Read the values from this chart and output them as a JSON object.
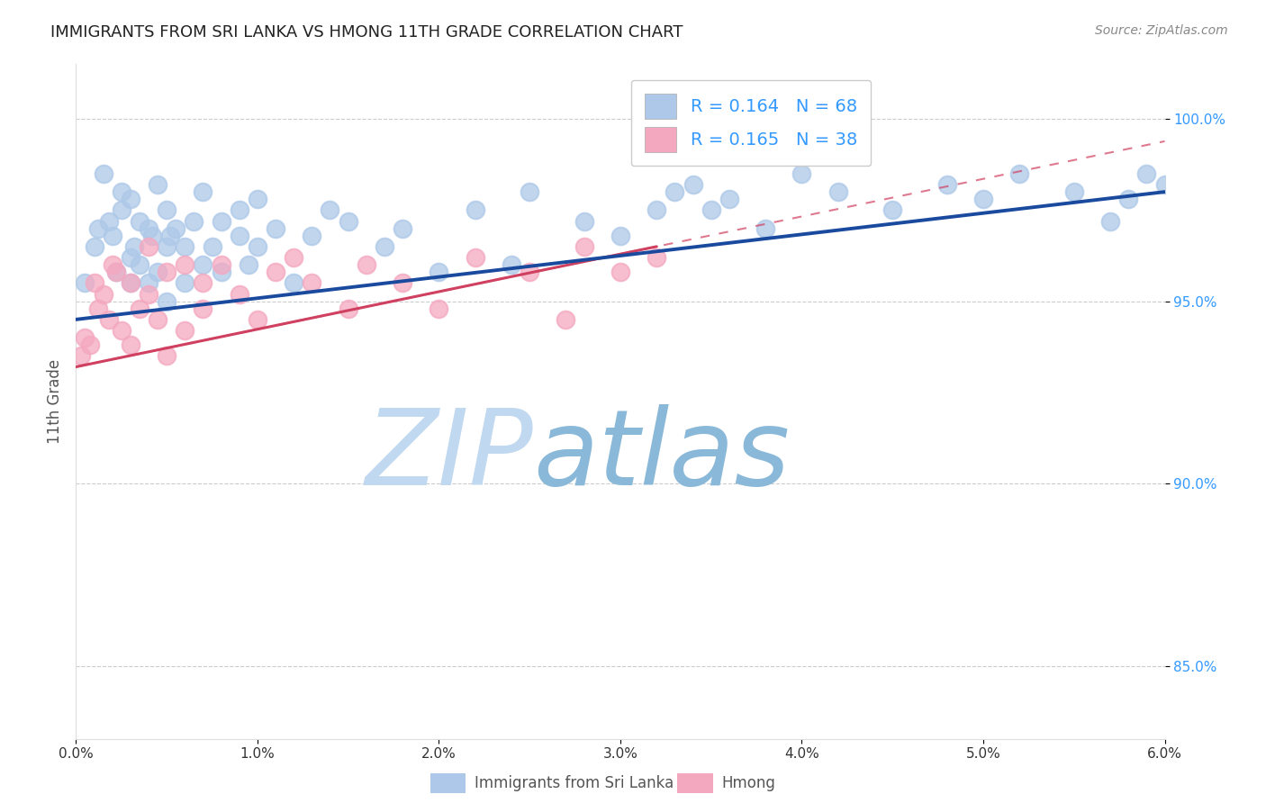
{
  "title": "IMMIGRANTS FROM SRI LANKA VS HMONG 11TH GRADE CORRELATION CHART",
  "source": "Source: ZipAtlas.com",
  "ylabel": "11th Grade",
  "xlim": [
    0.0,
    0.06
  ],
  "ylim": [
    83.0,
    101.5
  ],
  "yticks": [
    85.0,
    90.0,
    95.0,
    100.0
  ],
  "ytick_labels": [
    "85.0%",
    "90.0%",
    "95.0%",
    "100.0%"
  ],
  "xticks": [
    0.0,
    0.01,
    0.02,
    0.03,
    0.04,
    0.05,
    0.06
  ],
  "xtick_labels": [
    "0.0%",
    "1.0%",
    "2.0%",
    "3.0%",
    "4.0%",
    "5.0%",
    "6.0%"
  ],
  "legend_sri_lanka": "R = 0.164   N = 68",
  "legend_hmong": "R = 0.165   N = 38",
  "sri_lanka_color": "#adc8e8",
  "hmong_color": "#f4a8c0",
  "sri_lanka_line_color": "#1a4a9e",
  "hmong_line_color": "#d04060",
  "watermark_zip": "ZIP",
  "watermark_atlas": "atlas",
  "watermark_color_zip": "#c0d8f0",
  "watermark_color_atlas": "#8ab8d8",
  "legend_text_color": "#3399ff",
  "ytick_color": "#3399ff",
  "bottom_legend_sri_lanka": "Immigrants from Sri Lanka",
  "bottom_legend_hmong": "Hmong",
  "sri_lanka_x": [
    0.0005,
    0.001,
    0.0012,
    0.0015,
    0.0018,
    0.002,
    0.0022,
    0.0025,
    0.0025,
    0.003,
    0.003,
    0.003,
    0.0032,
    0.0035,
    0.0035,
    0.004,
    0.004,
    0.0042,
    0.0045,
    0.0045,
    0.005,
    0.005,
    0.005,
    0.0052,
    0.0055,
    0.006,
    0.006,
    0.0065,
    0.007,
    0.007,
    0.0075,
    0.008,
    0.008,
    0.009,
    0.009,
    0.0095,
    0.01,
    0.01,
    0.011,
    0.012,
    0.013,
    0.014,
    0.015,
    0.017,
    0.018,
    0.02,
    0.022,
    0.024,
    0.025,
    0.028,
    0.03,
    0.032,
    0.033,
    0.034,
    0.036,
    0.038,
    0.04,
    0.042,
    0.045,
    0.048,
    0.05,
    0.052,
    0.055,
    0.057,
    0.058,
    0.059,
    0.06,
    0.035
  ],
  "sri_lanka_y": [
    95.5,
    96.5,
    97.0,
    98.5,
    97.2,
    96.8,
    95.8,
    97.5,
    98.0,
    96.2,
    95.5,
    97.8,
    96.5,
    96.0,
    97.2,
    95.5,
    97.0,
    96.8,
    95.8,
    98.2,
    96.5,
    95.0,
    97.5,
    96.8,
    97.0,
    96.5,
    95.5,
    97.2,
    96.0,
    98.0,
    96.5,
    95.8,
    97.2,
    96.8,
    97.5,
    96.0,
    96.5,
    97.8,
    97.0,
    95.5,
    96.8,
    97.5,
    97.2,
    96.5,
    97.0,
    95.8,
    97.5,
    96.0,
    98.0,
    97.2,
    96.8,
    97.5,
    98.0,
    98.2,
    97.8,
    97.0,
    98.5,
    98.0,
    97.5,
    98.2,
    97.8,
    98.5,
    98.0,
    97.2,
    97.8,
    98.5,
    98.2,
    97.5
  ],
  "hmong_x": [
    0.0003,
    0.0005,
    0.0008,
    0.001,
    0.0012,
    0.0015,
    0.0018,
    0.002,
    0.0022,
    0.0025,
    0.003,
    0.003,
    0.0035,
    0.004,
    0.004,
    0.0045,
    0.005,
    0.005,
    0.006,
    0.006,
    0.007,
    0.007,
    0.008,
    0.009,
    0.01,
    0.011,
    0.012,
    0.013,
    0.015,
    0.016,
    0.018,
    0.02,
    0.022,
    0.025,
    0.027,
    0.028,
    0.03,
    0.032
  ],
  "hmong_y": [
    93.5,
    94.0,
    93.8,
    95.5,
    94.8,
    95.2,
    94.5,
    96.0,
    95.8,
    94.2,
    95.5,
    93.8,
    94.8,
    95.2,
    96.5,
    94.5,
    95.8,
    93.5,
    96.0,
    94.2,
    95.5,
    94.8,
    96.0,
    95.2,
    94.5,
    95.8,
    96.2,
    95.5,
    94.8,
    96.0,
    95.5,
    94.8,
    96.2,
    95.8,
    94.5,
    96.5,
    95.8,
    96.2
  ],
  "sl_line_x0": 0.0,
  "sl_line_x1": 0.06,
  "sl_line_y0": 94.5,
  "sl_line_y1": 98.0,
  "hm_line_x0": 0.0,
  "hm_line_x1": 0.032,
  "hm_line_y0": 93.2,
  "hm_line_y1": 96.5
}
